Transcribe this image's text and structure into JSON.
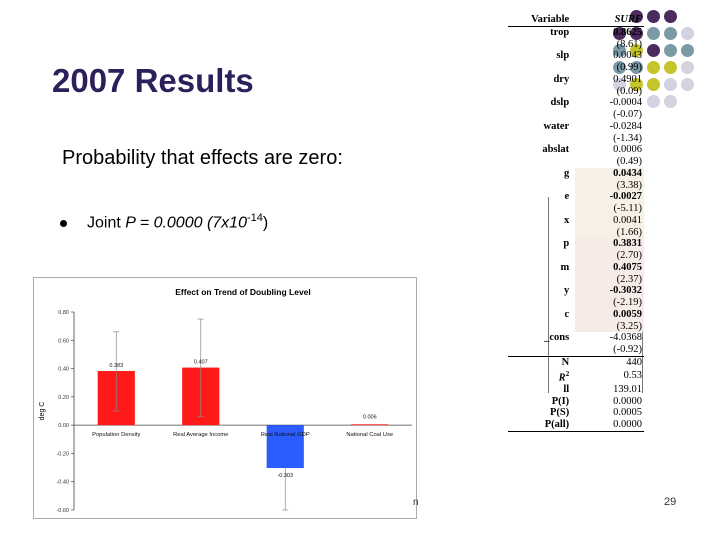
{
  "slide": {
    "title": "2007 Results",
    "subtitle": "Probability that effects are zero:",
    "bullet_prefix": "Joint ",
    "bullet_italic": "P = 0.0000 (7x10",
    "bullet_sup": "-14",
    "bullet_suffix": ")",
    "footer_fragment": "n",
    "page_number": "29"
  },
  "palette": {
    "purple": "#4b2a5e",
    "teal": "#7b9aa6",
    "olive": "#c5c42a",
    "lavender": "#d2d2e0",
    "title_color": "#2c1f5a",
    "bar_red": "#ff1a1a",
    "bar_blue": "#2a5cff"
  },
  "regression": {
    "header": {
      "label": "Variable",
      "col": "SURF"
    },
    "rows": [
      {
        "label": "trop",
        "coef": "0.8625",
        "t": "(8.61)",
        "bold": true
      },
      {
        "label": "slp",
        "coef": "0.0043",
        "t": "(0.99)",
        "bold": false
      },
      {
        "label": "dry",
        "coef": "0.4901",
        "t": "(0.09)",
        "bold": false
      },
      {
        "label": "dslp",
        "coef": "-0.0004",
        "t": "(-0.07)",
        "bold": false
      },
      {
        "label": "water",
        "coef": "-0.0284",
        "t": "(-1.34)",
        "bold": false
      },
      {
        "label": "abslat",
        "coef": "0.0006",
        "t": "(0.49)",
        "bold": false
      },
      {
        "label": "g",
        "coef": "0.0434",
        "t": "(3.38)",
        "bold": true
      },
      {
        "label": "e",
        "coef": "-0.0027",
        "t": "(-5.11)",
        "bold": true
      },
      {
        "label": "x",
        "coef": "0.0041",
        "t": "(1.66)",
        "bold": false
      },
      {
        "label": "p",
        "coef": "0.3831",
        "t": "(2.70)",
        "bold": true
      },
      {
        "label": "m",
        "coef": "0.4075",
        "t": "(2.37)",
        "bold": true
      },
      {
        "label": "y",
        "coef": "-0.3032",
        "t": "(-2.19)",
        "bold": true
      },
      {
        "label": "c",
        "coef": "0.0059",
        "t": "(3.25)",
        "bold": true
      },
      {
        "label": "_cons",
        "coef": "-4.0368",
        "t": "(-0.92)",
        "bold": false
      }
    ],
    "stats": [
      {
        "label": "N",
        "value": "440"
      },
      {
        "label": "R2",
        "value": "0.53"
      },
      {
        "label": "ll",
        "value": "139.01"
      },
      {
        "label": "P(I)",
        "value": "0.0000"
      },
      {
        "label": "P(S)",
        "value": "0.0005"
      },
      {
        "label": "P(all)",
        "value": "0.0000"
      }
    ]
  },
  "chart_data": {
    "type": "bar",
    "title": "Effect on Trend of Doubling Level",
    "ylabel": "deg C",
    "xlabel": "",
    "categories": [
      "Population Density",
      "Real Average Income",
      "Real National GDP",
      "National Coal Use"
    ],
    "values": [
      0.383,
      0.407,
      -0.303,
      0.006
    ],
    "value_labels": [
      "0.383",
      "0.407",
      "-0.303",
      "0.006"
    ],
    "error_high": [
      0.66,
      0.75,
      null,
      null
    ],
    "error_low": [
      0.1,
      0.06,
      -0.6,
      null
    ],
    "bar_colors": [
      "#ff1a1a",
      "#ff1a1a",
      "#2a5cff",
      "#ff1a1a"
    ],
    "ylim": [
      -0.6,
      0.8
    ],
    "yticks": [
      "0.80",
      "0.60",
      "0.40",
      "0.20",
      "0.00",
      "-0.20",
      "-0.40",
      "-0.60"
    ],
    "ytick_values": [
      0.8,
      0.6,
      0.4,
      0.2,
      0.0,
      -0.2,
      -0.4,
      -0.6
    ],
    "grid": false,
    "legend": "none"
  }
}
